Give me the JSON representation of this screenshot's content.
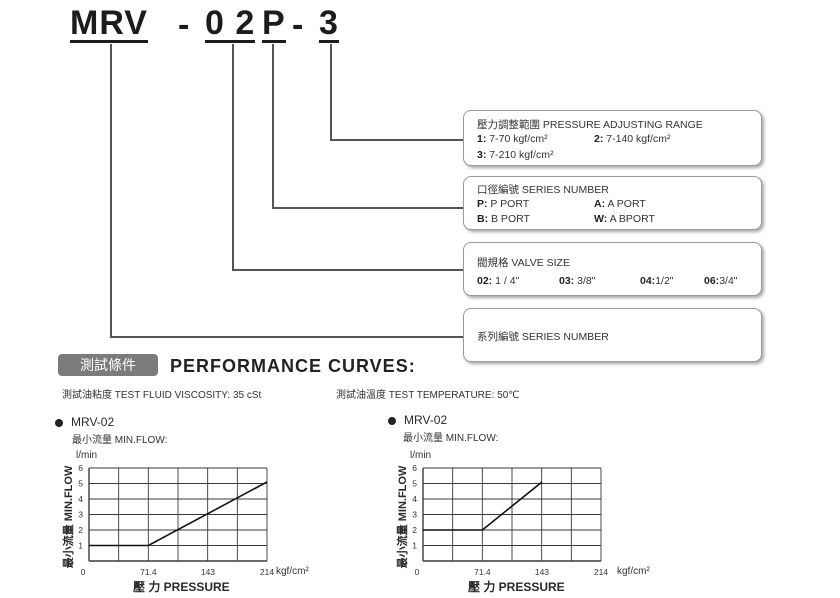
{
  "model_code": {
    "series": "MRV",
    "dash1": "-",
    "size": "0 2",
    "port": "P",
    "dash2": "-",
    "pressure": "3"
  },
  "pressure_box": {
    "title": "壓力調整範圍 PRESSURE ADJUSTING RANGE",
    "items": [
      {
        "key": "1:",
        "value": "7-70 kgf/cm²"
      },
      {
        "key": "2:",
        "value": "7-140 kgf/cm²"
      },
      {
        "key": "3:",
        "value": "7-210 kgf/cm²"
      }
    ]
  },
  "port_box": {
    "title": "口徑編號 SERIES NUMBER",
    "items": [
      {
        "key": "P:",
        "value": "P PORT"
      },
      {
        "key": "A:",
        "value": "A PORT"
      },
      {
        "key": "B:",
        "value": "B PORT"
      },
      {
        "key": "W:",
        "value": "A BPORT"
      }
    ]
  },
  "size_box": {
    "title": "閥規格 VALVE SIZE",
    "items": [
      {
        "key": "02:",
        "value": "1 / 4\""
      },
      {
        "key": "03:",
        "value": "3/8\""
      },
      {
        "key": "04:",
        "value": "1/2\""
      },
      {
        "key": "06:",
        "value": "3/4\""
      }
    ]
  },
  "series_box": {
    "title": "系列編號 SERIES NUMBER"
  },
  "performance": {
    "badge": "測試條件",
    "title": "PERFORMANCE CURVES:",
    "viscosity": "測試油粘度 TEST FLUID VISCOSITY: 35 cSt",
    "temperature": "測試油溫度 TEST TEMPERATURE: 50℃"
  },
  "chart_data": [
    {
      "type": "line",
      "title": "MRV-02",
      "subtitle": "最小流量 MIN.FLOW:",
      "ylabel_unit": "l/min",
      "ylabel": "最小流量 MIN.FLOW",
      "xlabel": "壓 力 PRESSURE",
      "xunit": "kgf/cm²",
      "xticks": [
        "0",
        "71.4",
        "143",
        "214"
      ],
      "yticks": [
        "1",
        "2",
        "3",
        "4",
        "5",
        "6"
      ],
      "xlim": [
        0,
        214
      ],
      "ylim": [
        0,
        6
      ],
      "grid": true,
      "series": [
        {
          "x": [
            0,
            71.4,
            214
          ],
          "y": [
            1,
            1,
            5.1
          ]
        }
      ]
    },
    {
      "type": "line",
      "title": "MRV-02",
      "subtitle": "最小流量 MIN.FLOW:",
      "ylabel_unit": "l/min",
      "ylabel": "最小流量 MIN.FLOW",
      "xlabel": "壓 力 PRESSURE",
      "xunit": "kgf/cm²",
      "xticks": [
        "0",
        "71.4",
        "143",
        "214"
      ],
      "yticks": [
        "1",
        "2",
        "3",
        "4",
        "5",
        "6"
      ],
      "xlim": [
        0,
        214
      ],
      "ylim": [
        0,
        6
      ],
      "grid": true,
      "series": [
        {
          "x": [
            0,
            71.4,
            143
          ],
          "y": [
            2,
            2,
            5.1
          ]
        }
      ]
    }
  ]
}
